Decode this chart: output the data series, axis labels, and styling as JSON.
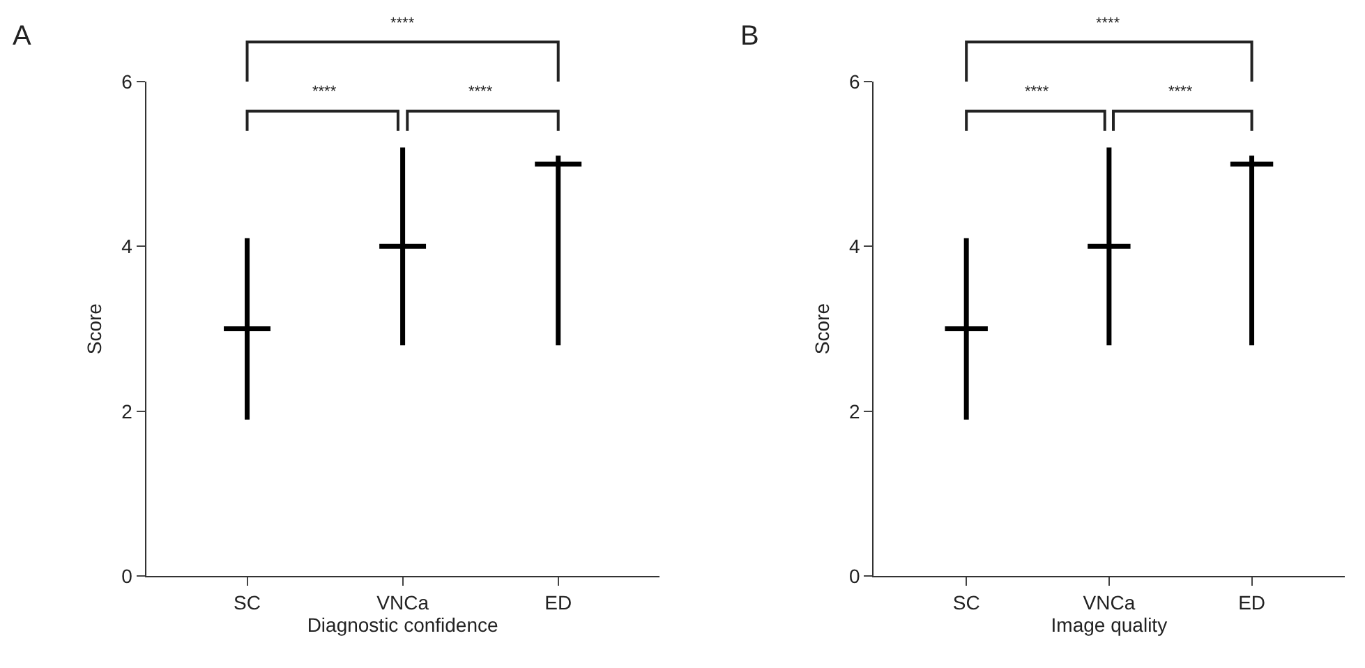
{
  "chart_data": [
    {
      "type": "box",
      "title": "A",
      "xlabel": "Diagnostic confidence",
      "ylabel": "Score",
      "categories": [
        "SC",
        "VNCa",
        "ED"
      ],
      "boxes": [
        {
          "low": 1.9,
          "q1": 3,
          "median": 3,
          "q3": 3,
          "high": 4.1
        },
        {
          "low": 2.8,
          "q1": 4,
          "median": 4,
          "q3": 4,
          "high": 5.2
        },
        {
          "low": 2.8,
          "q1": 5,
          "median": 5,
          "q3": 5,
          "high": 5.1
        }
      ],
      "color": "#000000",
      "ylim": [
        0,
        6
      ],
      "yticks": [
        0,
        2,
        4,
        6
      ],
      "annotations": [
        "****",
        "****",
        "****"
      ]
    },
    {
      "type": "box",
      "title": "B",
      "xlabel": "Image quality",
      "ylabel": "Score",
      "categories": [
        "SC",
        "VNCa",
        "ED"
      ],
      "boxes": [
        {
          "low": 1.9,
          "q1": 3,
          "median": 3,
          "q3": 3,
          "high": 4.1
        },
        {
          "low": 2.8,
          "q1": 4,
          "median": 4,
          "q3": 4,
          "high": 5.2
        },
        {
          "low": 2.8,
          "q1": 5,
          "median": 5,
          "q3": 5,
          "high": 5.1
        }
      ],
      "color": "#000000",
      "ylim": [
        0,
        6
      ],
      "yticks": [
        0,
        2,
        4,
        6
      ],
      "annotations": [
        "****",
        "****",
        "****"
      ]
    }
  ]
}
